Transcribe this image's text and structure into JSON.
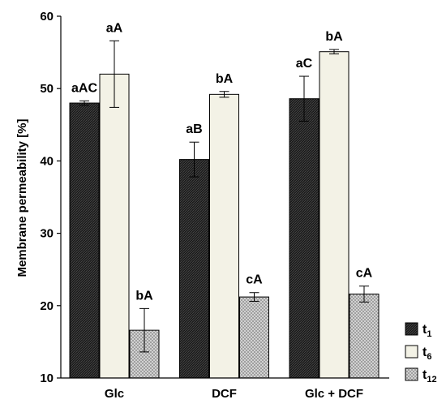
{
  "chart_data": {
    "type": "bar",
    "categories": [
      "Glc",
      "DCF",
      "Glc + DCF"
    ],
    "ylabel": "Membrane permeability [%]",
    "xlabel": "",
    "ylim": [
      10,
      60
    ],
    "yticks": [
      10,
      20,
      30,
      40,
      50,
      60
    ],
    "grid": false,
    "legend_position": "bottom-right",
    "series": [
      {
        "name": "t",
        "name_sub": "1",
        "color": "#222222",
        "pattern": "dark-hatch",
        "values": [
          48.0,
          40.2,
          48.6
        ],
        "errors": [
          0.3,
          2.4,
          3.1
        ],
        "labels": [
          "aAC",
          "aB",
          "aC"
        ]
      },
      {
        "name": "t",
        "name_sub": "6",
        "color": "#f3f2e6",
        "pattern": "solid",
        "values": [
          52.0,
          49.2,
          55.1
        ],
        "errors": [
          4.6,
          0.4,
          0.3
        ],
        "labels": [
          "aA",
          "bA",
          "bA"
        ]
      },
      {
        "name": "t",
        "name_sub": "12",
        "color": "#c4c4c4",
        "pattern": "light-hatch",
        "values": [
          16.6,
          21.2,
          21.6
        ],
        "errors": [
          3.0,
          0.6,
          1.1
        ],
        "labels": [
          "bA",
          "cA",
          "cA"
        ]
      }
    ]
  }
}
